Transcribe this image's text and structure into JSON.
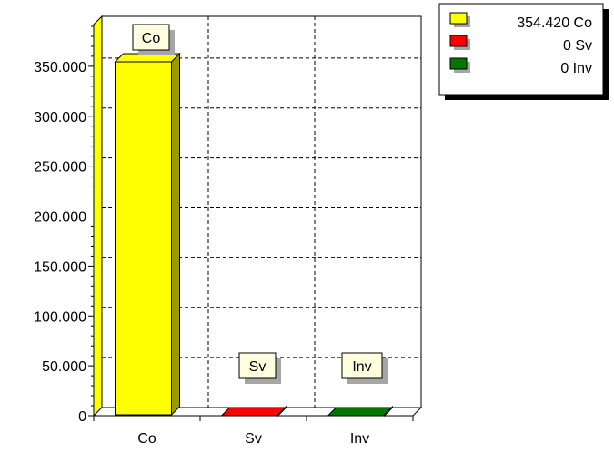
{
  "chart_data": {
    "type": "bar",
    "categories": [
      "Co",
      "Sv",
      "Inv"
    ],
    "values": [
      354420,
      0,
      0
    ],
    "colors": [
      "#ffff00",
      "#ff0000",
      "#007700"
    ],
    "ylim": [
      0,
      400000
    ],
    "yticks": [
      0,
      50000,
      100000,
      150000,
      200000,
      250000,
      300000,
      350000
    ],
    "ytick_labels": [
      "0",
      "50.000",
      "100.000",
      "150.000",
      "200.000",
      "250.000",
      "300.000",
      "350.000"
    ],
    "grid": true,
    "legend_position": "top-right",
    "legend": [
      {
        "label": "354.420 Co",
        "color": "#ffff00"
      },
      {
        "label": "0 Sv",
        "color": "#ff0000"
      },
      {
        "label": "0 Inv",
        "color": "#007700"
      }
    ],
    "callouts": [
      "Co",
      "Sv",
      "Inv"
    ]
  }
}
